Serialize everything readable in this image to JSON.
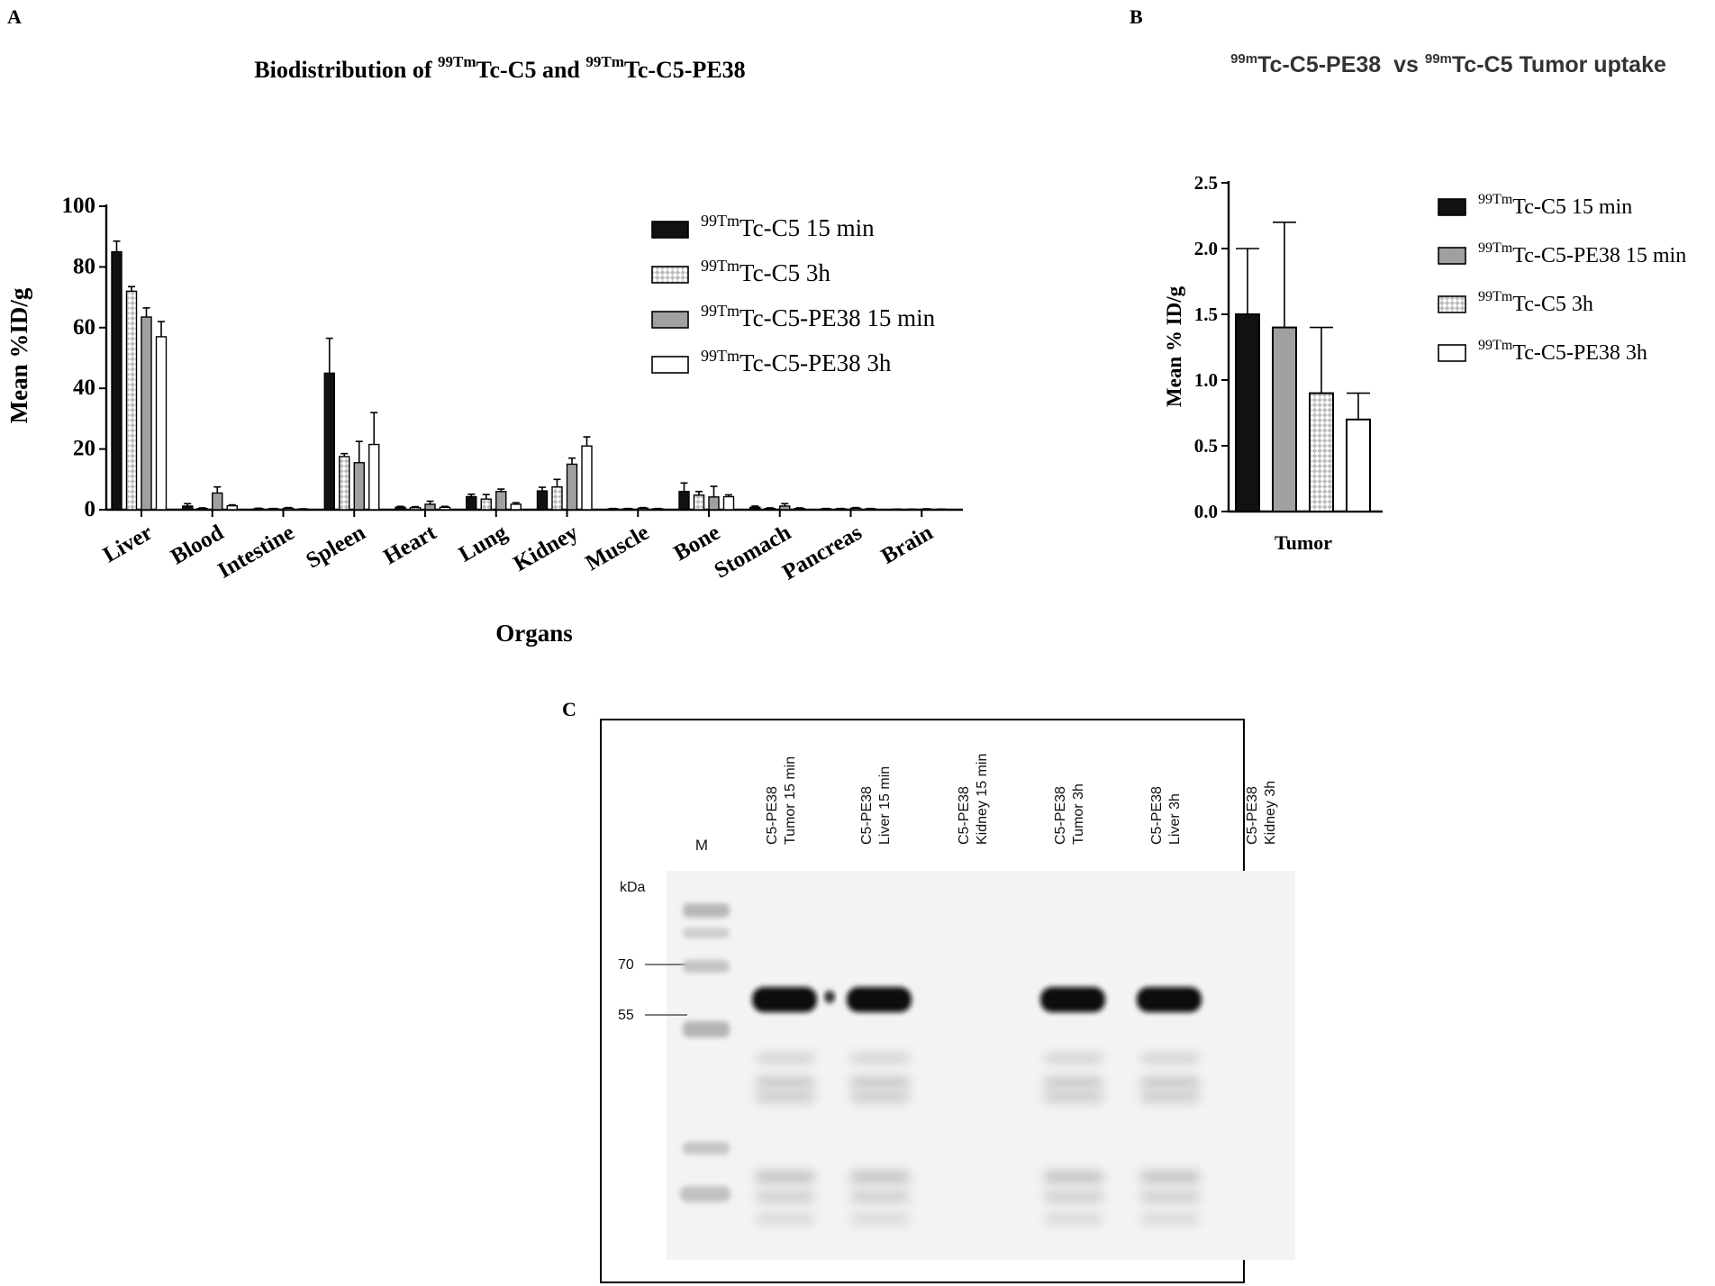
{
  "panel_labels": {
    "a": "A",
    "b": "B",
    "c": "C"
  },
  "colors": {
    "black": "#111111",
    "gray": "#a0a0a0",
    "white": "#ffffff",
    "checker": "#c8c8c8"
  },
  "chart_data": [
    {
      "type": "bar",
      "title": {
        "prefix": "Biodistribution of ",
        "sup1": "99Tm",
        "mid": "Tc-C5 and ",
        "sup2": "99Tm",
        "suffix": "Tc-C5-PE38"
      },
      "xlabel": "Organs",
      "ylabel": "Mean %ID/g",
      "ylim": [
        0,
        100
      ],
      "yticks": [
        "0",
        "20",
        "40",
        "60",
        "80",
        "100"
      ],
      "legend_position": "top-right",
      "categories": [
        "Liver",
        "Blood",
        "Intestine",
        "Spleen",
        "Heart",
        "Lung",
        "Kidney",
        "Muscle",
        "Bone",
        "Stomach",
        "Pancreas",
        "Brain"
      ],
      "series": [
        {
          "name": {
            "sup": "99Tm",
            "text": "Tc-C5 15 min"
          },
          "fill": "black",
          "values": [
            85,
            1.2,
            0.3,
            45,
            0.8,
            4.3,
            6.2,
            0.3,
            6.0,
            0.8,
            0.3,
            0.1
          ],
          "errors": [
            3.5,
            0.8,
            0.2,
            11.5,
            0.3,
            0.8,
            1.2,
            0.1,
            2.8,
            0.4,
            0.1,
            0.1
          ]
        },
        {
          "name": {
            "sup": "99Tm",
            "text": "Tc-C5 3h"
          },
          "fill": "checker",
          "values": [
            72,
            0.4,
            0.3,
            17.5,
            0.7,
            3.5,
            7.5,
            0.3,
            4.8,
            0.4,
            0.3,
            0.1
          ],
          "errors": [
            1.5,
            0.2,
            0.1,
            1.0,
            0.3,
            1.5,
            2.5,
            0.1,
            1.2,
            0.2,
            0.1,
            0.1
          ]
        },
        {
          "name": {
            "sup": "99Tm",
            "text": "Tc-C5-PE38 15 min"
          },
          "fill": "gray",
          "values": [
            63.5,
            5.5,
            0.5,
            15.5,
            1.8,
            6.0,
            15.0,
            0.5,
            4.2,
            1.2,
            0.5,
            0.2
          ],
          "errors": [
            3.0,
            2.0,
            0.2,
            7.0,
            1.0,
            0.8,
            2.0,
            0.2,
            3.5,
            0.8,
            0.2,
            0.1
          ]
        },
        {
          "name": {
            "sup": "99Tm",
            "text": "Tc-C5-PE38 3h"
          },
          "fill": "white",
          "values": [
            57,
            1.3,
            0.2,
            21.5,
            0.8,
            1.8,
            21.0,
            0.3,
            4.3,
            0.4,
            0.3,
            0.1
          ],
          "errors": [
            5.0,
            0.3,
            0.1,
            10.5,
            0.3,
            0.5,
            3.0,
            0.1,
            0.6,
            0.2,
            0.1,
            0.1
          ]
        }
      ]
    },
    {
      "type": "bar",
      "title": {
        "sup1": "99m",
        "mid": "Tc-C5-PE38  vs ",
        "sup2": "99m",
        "suffix": "Tc-C5 Tumor uptake"
      },
      "xlabel": "Tumor",
      "ylabel": "Mean % ID/g",
      "ylim": [
        0,
        2.5
      ],
      "yticks": [
        "0.0",
        "0.5",
        "1.0",
        "1.5",
        "2.0",
        "2.5"
      ],
      "legend_position": "right",
      "categories": [
        "Tumor"
      ],
      "series": [
        {
          "name": {
            "sup": "99Tm",
            "text": "Tc-C5 15 min"
          },
          "fill": "black",
          "values": [
            1.5
          ],
          "errors": [
            0.5
          ]
        },
        {
          "name": {
            "sup": "99Tm",
            "text": "Tc-C5-PE38 15 min"
          },
          "fill": "gray",
          "values": [
            1.4
          ],
          "errors": [
            0.8
          ]
        },
        {
          "name": {
            "sup": "99Tm",
            "text": "Tc-C5 3h"
          },
          "fill": "checker",
          "values": [
            0.9
          ],
          "errors": [
            0.5
          ]
        },
        {
          "name": {
            "sup": "99Tm",
            "text": "Tc-C5-PE38 3h"
          },
          "fill": "white",
          "values": [
            0.7
          ],
          "errors": [
            0.2
          ]
        }
      ]
    }
  ],
  "blot": {
    "marker_lane": "M",
    "kda_label": "kDa",
    "markers": [
      "70",
      "55"
    ],
    "lanes": [
      {
        "line1": "C5-PE38",
        "line2": "Tumor 15 min",
        "band": true
      },
      {
        "line1": "C5-PE38",
        "line2": "Liver 15 min",
        "band": true
      },
      {
        "line1": "C5-PE38",
        "line2": "Kidney 15 min",
        "band": false
      },
      {
        "line1": "C5-PE38",
        "line2": "Tumor 3h",
        "band": true
      },
      {
        "line1": "C5-PE38",
        "line2": "Liver 3h",
        "band": true
      },
      {
        "line1": "C5-PE38",
        "line2": "Kidney 3h",
        "band": false
      }
    ]
  }
}
